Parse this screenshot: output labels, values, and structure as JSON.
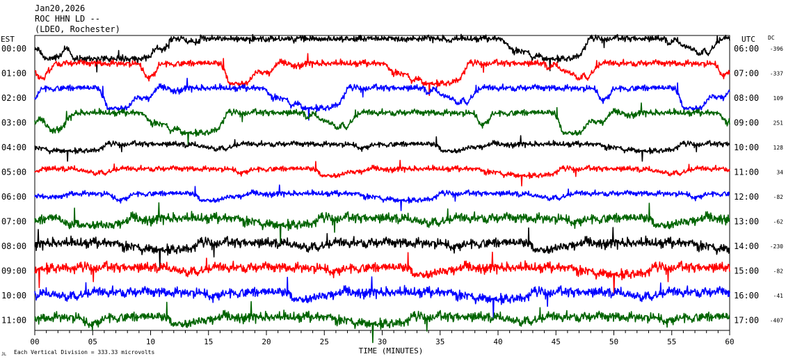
{
  "header": {
    "date": "Jan20,2026",
    "station": "ROC HHN LD --",
    "network": "(LDEO, Rochester)"
  },
  "chart_data": {
    "type": "line",
    "title": "",
    "xlabel": "TIME (MINUTES)",
    "ylabel": "",
    "left_axis_label": "EST",
    "right_axis_label": "UTC",
    "dc_label": "DC",
    "xlim": [
      0,
      60
    ],
    "x_ticks": [
      "00",
      "05",
      "10",
      "15",
      "20",
      "25",
      "30",
      "35",
      "40",
      "45",
      "50",
      "55",
      "60"
    ],
    "rows": [
      {
        "est": "00:00",
        "utc": "06:00",
        "dc": "-396",
        "color": "#000000"
      },
      {
        "est": "01:00",
        "utc": "07:00",
        "dc": "-337",
        "color": "#ff0000"
      },
      {
        "est": "02:00",
        "utc": "08:00",
        "dc": "109",
        "color": "#0000ff"
      },
      {
        "est": "03:00",
        "utc": "09:00",
        "dc": "251",
        "color": "#006400"
      },
      {
        "est": "04:00",
        "utc": "10:00",
        "dc": "128",
        "color": "#000000"
      },
      {
        "est": "05:00",
        "utc": "11:00",
        "dc": "34",
        "color": "#ff0000"
      },
      {
        "est": "06:00",
        "utc": "12:00",
        "dc": "-82",
        "color": "#0000ff"
      },
      {
        "est": "07:00",
        "utc": "13:00",
        "dc": "-62",
        "color": "#006400"
      },
      {
        "est": "08:00",
        "utc": "14:00",
        "dc": "-230",
        "color": "#000000"
      },
      {
        "est": "09:00",
        "utc": "15:00",
        "dc": "-82",
        "color": "#ff0000"
      },
      {
        "est": "10:00",
        "utc": "16:00",
        "dc": "-41",
        "color": "#0000ff"
      },
      {
        "est": "11:00",
        "utc": "17:00",
        "dc": "-407",
        "color": "#006400"
      }
    ],
    "scale_note": "Each Vertical Division = 333.33 microvolts",
    "corner_mark": "JL"
  }
}
